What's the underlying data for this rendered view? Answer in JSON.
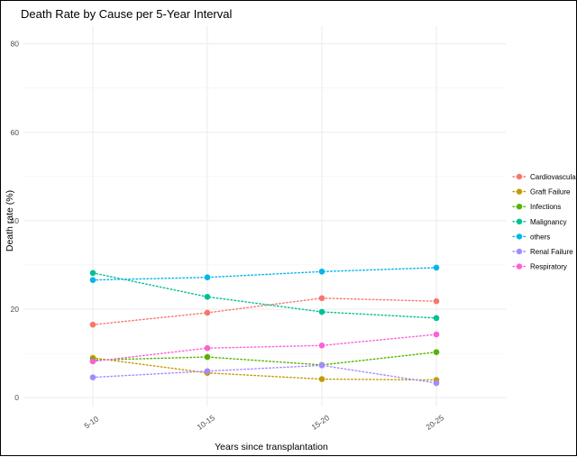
{
  "chart_data": {
    "type": "line",
    "title": "Death Rate by Cause per 5-Year Interval",
    "xlabel": "Years since transplantation",
    "ylabel": "Death rate (%)",
    "categories": [
      "5-10",
      "10-15",
      "15-20",
      "20-25"
    ],
    "ylim": [
      -2,
      84
    ],
    "yticks": [
      0,
      20,
      40,
      60,
      80
    ],
    "grid": true,
    "line_style": "dotted",
    "legend_position": "right",
    "series": [
      {
        "name": "Cardiovascular",
        "color": "#F8766D",
        "values": [
          16.5,
          19.2,
          22.5,
          21.8
        ]
      },
      {
        "name": "Graft Failure",
        "color": "#C49A00",
        "values": [
          9.0,
          5.6,
          4.2,
          4.0
        ]
      },
      {
        "name": "Infections",
        "color": "#53B400",
        "values": [
          8.5,
          9.2,
          7.4,
          10.3
        ]
      },
      {
        "name": "Malignancy",
        "color": "#00C094",
        "values": [
          28.2,
          22.8,
          19.4,
          18.0
        ]
      },
      {
        "name": "others",
        "color": "#00B6EB",
        "values": [
          26.6,
          27.2,
          28.5,
          29.4
        ]
      },
      {
        "name": "Renal Failure",
        "color": "#A58AFF",
        "values": [
          4.6,
          6.0,
          7.3,
          3.3
        ]
      },
      {
        "name": "Respiratory",
        "color": "#FB61D7",
        "values": [
          8.2,
          11.2,
          11.8,
          14.3
        ]
      }
    ]
  }
}
